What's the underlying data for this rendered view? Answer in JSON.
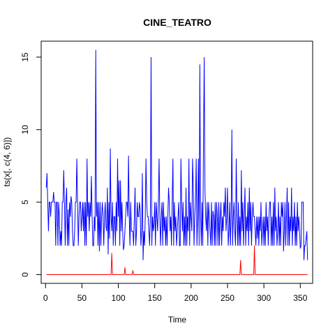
{
  "chart_data": {
    "type": "line",
    "title": "CINE_TEATRO",
    "xlabel": "Time",
    "ylabel": "ts(x[, c(4, 6)])",
    "xlim": [
      -6,
      367
    ],
    "ylim": [
      -0.6,
      16.1
    ],
    "xticks": [
      0,
      50,
      100,
      150,
      200,
      250,
      300,
      350
    ],
    "yticks": [
      0,
      5,
      10,
      15
    ],
    "grid": false,
    "series": [
      {
        "color": "#0000ff",
        "x_start": 1,
        "values": [
          6,
          7,
          5,
          3,
          5,
          5,
          4,
          5,
          5,
          5,
          5.7,
          5,
          5,
          2,
          5,
          5,
          2,
          5,
          4,
          2,
          3,
          2,
          5,
          5,
          7.2,
          5,
          2,
          5,
          6,
          2,
          4.5,
          2,
          5,
          4,
          5.4,
          5,
          3,
          2,
          2,
          3,
          5,
          5,
          8,
          5,
          2,
          4,
          5,
          5,
          3,
          4,
          5,
          3,
          5,
          2,
          5,
          2,
          8,
          4,
          5,
          3,
          5,
          4,
          6.8,
          4,
          2,
          2,
          4,
          3,
          15.5,
          4,
          5,
          2,
          5,
          1.6,
          5,
          2,
          4,
          5,
          4,
          2,
          4,
          5,
          3.3,
          3,
          6,
          1.4,
          5,
          2.5,
          8.7,
          4,
          3,
          5,
          2,
          4,
          4,
          2,
          5,
          3,
          8,
          4,
          6.5,
          2,
          6.5,
          3,
          5,
          3,
          1.7,
          2,
          3,
          4,
          5,
          5,
          4,
          8.2,
          4,
          2,
          5,
          3,
          3,
          3,
          2,
          4,
          6,
          2,
          3,
          5,
          4,
          4,
          5,
          4.5,
          2,
          3,
          7,
          1,
          3,
          2,
          4,
          8,
          5,
          4,
          4,
          3,
          2,
          4,
          15,
          2,
          4,
          3,
          3.5,
          5,
          2,
          5,
          4,
          3,
          5,
          8,
          4,
          2,
          4,
          5,
          2,
          5,
          3,
          4,
          2,
          4,
          2,
          4,
          6,
          5,
          3,
          4,
          2,
          5,
          8,
          2,
          5,
          3,
          4,
          2,
          3,
          4,
          5,
          2,
          2,
          8,
          5,
          3,
          5,
          2,
          4,
          2,
          6,
          2,
          4,
          3,
          8,
          2,
          5,
          4,
          3,
          8,
          6,
          2,
          4,
          5,
          8,
          2,
          4,
          8,
          2,
          14.5,
          4,
          2,
          5,
          2,
          9,
          15,
          6,
          4,
          3,
          5,
          2,
          5,
          4,
          3,
          2,
          5,
          2,
          4.4,
          4,
          2,
          5,
          2,
          5,
          4,
          2,
          5,
          2,
          4,
          5,
          2,
          4,
          3,
          5,
          4,
          6,
          3,
          4,
          6,
          2,
          3,
          5,
          2,
          4,
          10,
          2,
          4,
          5,
          3,
          2,
          8,
          4,
          2,
          5,
          2,
          4,
          2,
          7.2,
          3,
          5,
          2,
          4,
          6,
          2,
          4,
          3,
          5,
          2,
          6,
          3,
          5,
          2,
          4,
          5,
          4,
          4,
          3,
          2,
          4,
          2.5,
          4,
          2,
          4,
          3,
          5,
          2,
          3,
          4,
          2,
          4,
          2,
          5,
          3,
          4,
          2,
          4,
          5,
          5,
          2,
          4,
          2,
          5,
          2,
          6,
          3,
          4,
          2,
          3,
          5,
          2,
          4,
          2,
          5,
          4,
          5,
          1.6,
          3,
          5,
          2,
          4,
          6,
          2,
          5,
          2,
          4,
          3,
          6,
          2,
          4,
          3,
          5,
          2,
          4,
          2,
          5,
          3,
          4,
          3,
          1.8,
          2,
          5,
          5,
          5,
          1,
          2,
          2,
          2.5,
          3,
          1
        ]
      },
      {
        "color": "#ff0000",
        "x_start": 1,
        "spikes": [
          [
            91,
            1.5
          ],
          [
            109,
            0.5
          ],
          [
            120,
            0.3
          ],
          [
            268,
            1.0
          ],
          [
            287,
            2.0
          ]
        ],
        "baseline": 0,
        "n": 360
      }
    ]
  }
}
